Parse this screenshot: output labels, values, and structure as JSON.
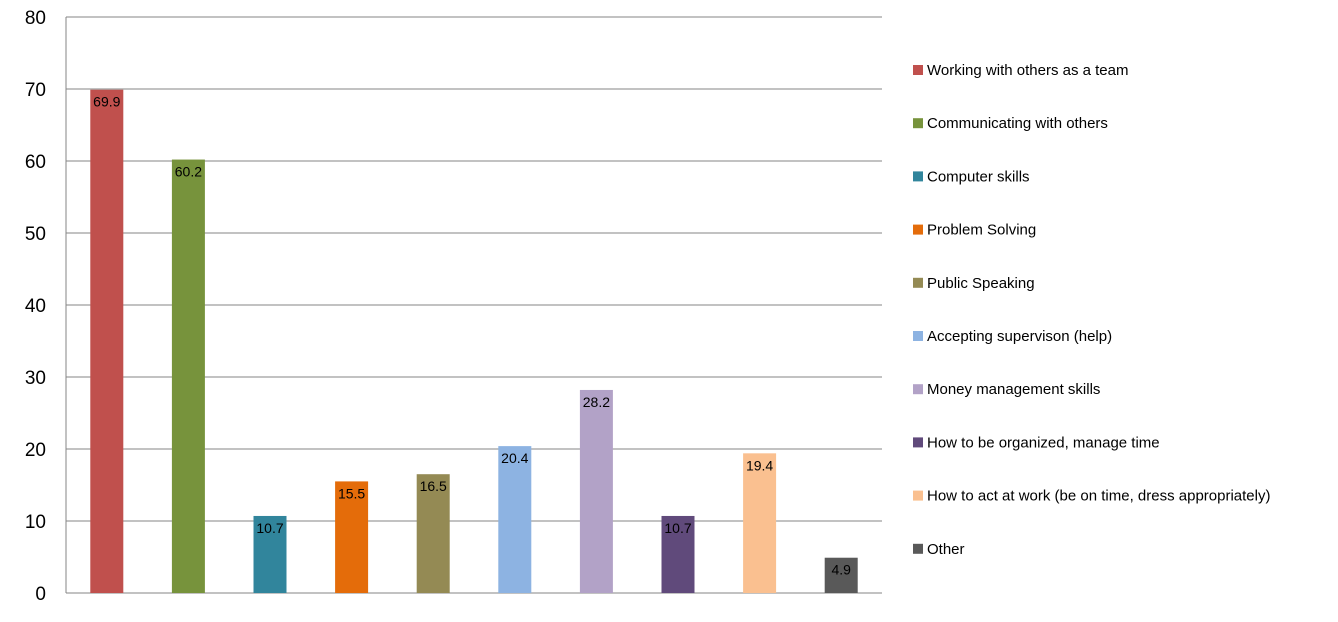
{
  "chart_data": {
    "type": "bar",
    "title": "",
    "xlabel": "",
    "ylabel": "",
    "ylim": [
      0,
      80
    ],
    "y_ticks": [
      "0",
      "10",
      "20",
      "30",
      "40",
      "50",
      "60",
      "70",
      "80"
    ],
    "grid": true,
    "legend_position": "right",
    "series": [
      {
        "name": "Working with others as a team",
        "value": 69.9,
        "label": "69.9",
        "color": "#c0504d"
      },
      {
        "name": "Communicating with others",
        "value": 60.2,
        "label": "60.2",
        "color": "#77933c"
      },
      {
        "name": "Computer skills",
        "value": 10.7,
        "label": "10.7",
        "color": "#31859c"
      },
      {
        "name": "Problem Solving",
        "value": 15.5,
        "label": "15.5",
        "color": "#e46c0a"
      },
      {
        "name": "Public Speaking",
        "value": 16.5,
        "label": "16.5",
        "color": "#948a54"
      },
      {
        "name": "Accepting supervison (help)",
        "value": 20.4,
        "label": "20.4",
        "color": "#8db3e2"
      },
      {
        "name": "Money management skills",
        "value": 28.2,
        "label": "28.2",
        "color": "#b2a2c7"
      },
      {
        "name": "How to be organized, manage time",
        "value": 10.7,
        "label": "10.7",
        "color": "#604a7b"
      },
      {
        "name": "How to act at work (be on time, dress appropriately)",
        "value": 19.4,
        "label": "19.4",
        "color": "#fac090"
      },
      {
        "name": "Other",
        "value": 4.9,
        "label": "4.9",
        "color": "#595959"
      }
    ]
  }
}
